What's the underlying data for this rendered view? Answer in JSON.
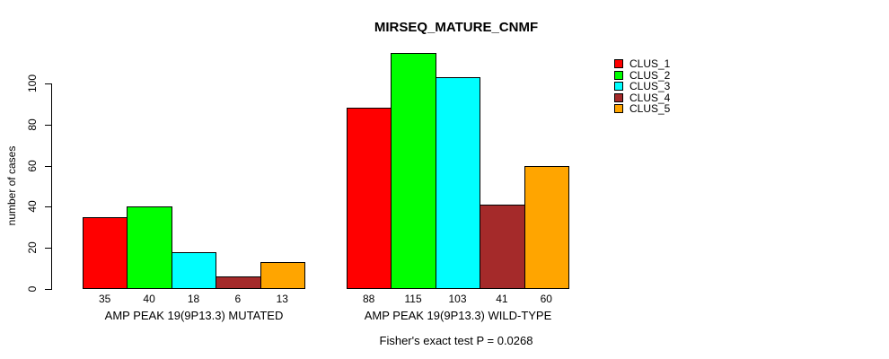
{
  "chart_data": {
    "type": "bar",
    "title": "MIRSEQ_MATURE_CNMF",
    "ylabel": "number of cases",
    "xlabel": "",
    "ylim": [
      0,
      115
    ],
    "yticks": [
      0,
      20,
      40,
      60,
      80,
      100
    ],
    "grid": false,
    "legend_position": "top-right",
    "categories": [
      "AMP PEAK 19(9P13.3) MUTATED",
      "AMP PEAK 19(9P13.3) WILD-TYPE"
    ],
    "series": [
      {
        "name": "CLUS_1",
        "color": "#FF0000",
        "values": [
          35,
          88
        ]
      },
      {
        "name": "CLUS_2",
        "color": "#00FF00",
        "values": [
          40,
          115
        ]
      },
      {
        "name": "CLUS_3",
        "color": "#00FFFF",
        "values": [
          18,
          103
        ]
      },
      {
        "name": "CLUS_4",
        "color": "#A52A2A",
        "values": [
          6,
          41
        ]
      },
      {
        "name": "CLUS_5",
        "color": "#FFA500",
        "values": [
          13,
          60
        ]
      }
    ],
    "bar_value_labels": true,
    "annotation": "Fisher's exact test P = 0.0268"
  }
}
